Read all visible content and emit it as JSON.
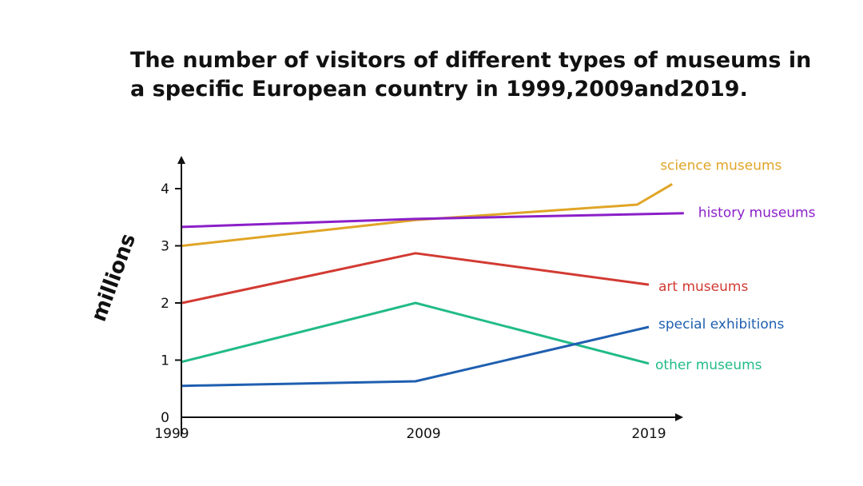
{
  "title_lines": [
    "The number of visitors of different types of museums in",
    "a specific European country in 1999,2009and2019."
  ],
  "chart_data": {
    "type": "line",
    "title": "The number of visitors of different types of museums in a specific European country in 1999,2009and2019.",
    "ylabel": "millions",
    "xlabel": "",
    "x": [
      "1999",
      "2009",
      "2019"
    ],
    "y_ticks": [
      "0",
      "1",
      "2",
      "3",
      "4"
    ],
    "ylim": [
      0,
      4.4
    ],
    "grid": false,
    "legend": "labels at line ends",
    "series": [
      {
        "name": "science museums",
        "color": "#E0A526",
        "points": [
          [
            1999,
            3.0
          ],
          [
            2009,
            3.45
          ],
          [
            2018.5,
            3.72
          ],
          [
            2020,
            4.08
          ]
        ]
      },
      {
        "name": "history museums",
        "color": "#8B1FC8",
        "points": [
          [
            1999,
            3.33
          ],
          [
            2009,
            3.47
          ],
          [
            2020.5,
            3.57
          ]
        ]
      },
      {
        "name": "art museums",
        "color": "#D23A32",
        "points": [
          [
            1999,
            2.0
          ],
          [
            2009,
            2.87
          ],
          [
            2019,
            2.32
          ]
        ]
      },
      {
        "name": "other museums",
        "color": "#22BB88",
        "points": [
          [
            1999,
            0.97
          ],
          [
            2009,
            2.0
          ],
          [
            2019,
            0.94
          ]
        ]
      },
      {
        "name": "special exhibitions",
        "color": "#1F5FB0",
        "points": [
          [
            1999,
            0.55
          ],
          [
            2009,
            0.63
          ],
          [
            2019,
            1.58
          ]
        ]
      }
    ]
  }
}
